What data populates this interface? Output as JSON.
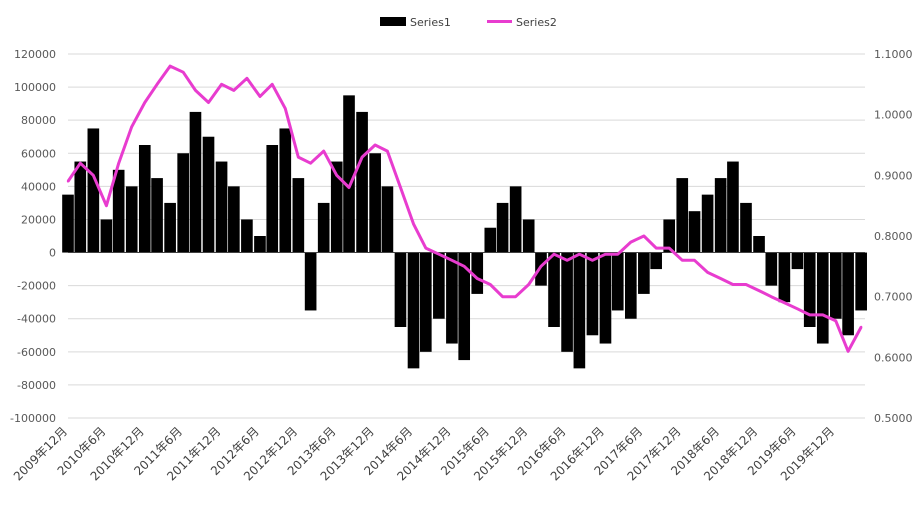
{
  "chart_data": {
    "type": "bar",
    "legend": {
      "placement": "top",
      "items": [
        {
          "name": "Series1",
          "kind": "bar",
          "color": "#000000"
        },
        {
          "name": "Series2",
          "kind": "line",
          "color": "#e83ccf"
        }
      ]
    },
    "y_left": {
      "min": -100000,
      "max": 120000,
      "step": 20000,
      "tick_labels": [
        "-100000",
        "-80000",
        "-60000",
        "-40000",
        "-20000",
        "0",
        "20000",
        "40000",
        "60000",
        "80000",
        "100000",
        "120000"
      ]
    },
    "y_right": {
      "min": 0.5,
      "max": 1.1,
      "step": 0.1,
      "tick_labels": [
        "0.5000",
        "0.6000",
        "0.7000",
        "0.8000",
        "0.9000",
        "1.0000",
        "1.1000"
      ]
    },
    "x_tick_labels": [
      "2009年12月",
      "2010年6月",
      "2010年12月",
      "2011年6月",
      "2011年12月",
      "2012年6月",
      "2012年12月",
      "2013年6月",
      "2013年12月",
      "2014年6月",
      "2014年12月",
      "2015年6月",
      "2015年12月",
      "2016年6月",
      "2016年12月",
      "2017年6月",
      "2017年12月",
      "2018年6月",
      "2018年12月",
      "2019年6月",
      "2019年12月"
    ],
    "grid": {
      "horizontal": true,
      "vertical": false
    },
    "series": [
      {
        "name": "Series1",
        "type": "bar",
        "x": [
          2009.92,
          2010.08,
          2010.25,
          2010.42,
          2010.58,
          2010.75,
          2010.92,
          2011.08,
          2011.25,
          2011.42,
          2011.58,
          2011.75,
          2011.92,
          2012.08,
          2012.25,
          2012.42,
          2012.58,
          2012.75,
          2012.92,
          2013.08,
          2013.25,
          2013.42,
          2013.58,
          2013.75,
          2013.92,
          2014.08,
          2014.25,
          2014.42,
          2014.58,
          2014.75,
          2014.92,
          2015.08,
          2015.25,
          2015.42,
          2015.58,
          2015.75,
          2015.92,
          2016.08,
          2016.25,
          2016.42,
          2016.58,
          2016.75,
          2016.92,
          2017.08,
          2017.25,
          2017.42,
          2017.58,
          2017.75,
          2017.92,
          2018.08,
          2018.25,
          2018.42,
          2018.58,
          2018.75,
          2018.92,
          2019.08,
          2019.25,
          2019.42,
          2019.58,
          2019.75,
          2019.92,
          2020.08,
          2020.25
        ],
        "values": [
          35000,
          55000,
          75000,
          20000,
          50000,
          40000,
          65000,
          45000,
          30000,
          60000,
          85000,
          70000,
          55000,
          40000,
          20000,
          10000,
          65000,
          75000,
          45000,
          -35000,
          30000,
          55000,
          95000,
          85000,
          60000,
          40000,
          -45000,
          -70000,
          -60000,
          -40000,
          -55000,
          -65000,
          -25000,
          15000,
          30000,
          40000,
          20000,
          -20000,
          -45000,
          -60000,
          -70000,
          -50000,
          -55000,
          -35000,
          -40000,
          -25000,
          -10000,
          20000,
          45000,
          25000,
          35000,
          45000,
          55000,
          30000,
          10000,
          -20000,
          -30000,
          -10000,
          -45000,
          -55000,
          -40000,
          -50000,
          -35000
        ]
      },
      {
        "name": "Series2",
        "type": "line",
        "x": [
          2009.92,
          2010.08,
          2010.25,
          2010.42,
          2010.58,
          2010.75,
          2010.92,
          2011.08,
          2011.25,
          2011.42,
          2011.58,
          2011.75,
          2011.92,
          2012.08,
          2012.25,
          2012.42,
          2012.58,
          2012.75,
          2012.92,
          2013.08,
          2013.25,
          2013.42,
          2013.58,
          2013.75,
          2013.92,
          2014.08,
          2014.25,
          2014.42,
          2014.58,
          2014.75,
          2014.92,
          2015.08,
          2015.25,
          2015.42,
          2015.58,
          2015.75,
          2015.92,
          2016.08,
          2016.25,
          2016.42,
          2016.58,
          2016.75,
          2016.92,
          2017.08,
          2017.25,
          2017.42,
          2017.58,
          2017.75,
          2017.92,
          2018.08,
          2018.25,
          2018.42,
          2018.58,
          2018.75,
          2018.92,
          2019.08,
          2019.25,
          2019.42,
          2019.58,
          2019.75,
          2019.92,
          2020.08,
          2020.25
        ],
        "values": [
          0.89,
          0.92,
          0.9,
          0.85,
          0.92,
          0.98,
          1.02,
          1.05,
          1.08,
          1.07,
          1.04,
          1.02,
          1.05,
          1.04,
          1.06,
          1.03,
          1.05,
          1.01,
          0.93,
          0.92,
          0.94,
          0.9,
          0.88,
          0.93,
          0.95,
          0.94,
          0.88,
          0.82,
          0.78,
          0.77,
          0.76,
          0.75,
          0.73,
          0.72,
          0.7,
          0.7,
          0.72,
          0.75,
          0.77,
          0.76,
          0.77,
          0.76,
          0.77,
          0.77,
          0.79,
          0.8,
          0.78,
          0.78,
          0.76,
          0.76,
          0.74,
          0.73,
          0.72,
          0.72,
          0.71,
          0.7,
          0.69,
          0.68,
          0.67,
          0.67,
          0.66,
          0.61,
          0.65
        ]
      }
    ]
  }
}
